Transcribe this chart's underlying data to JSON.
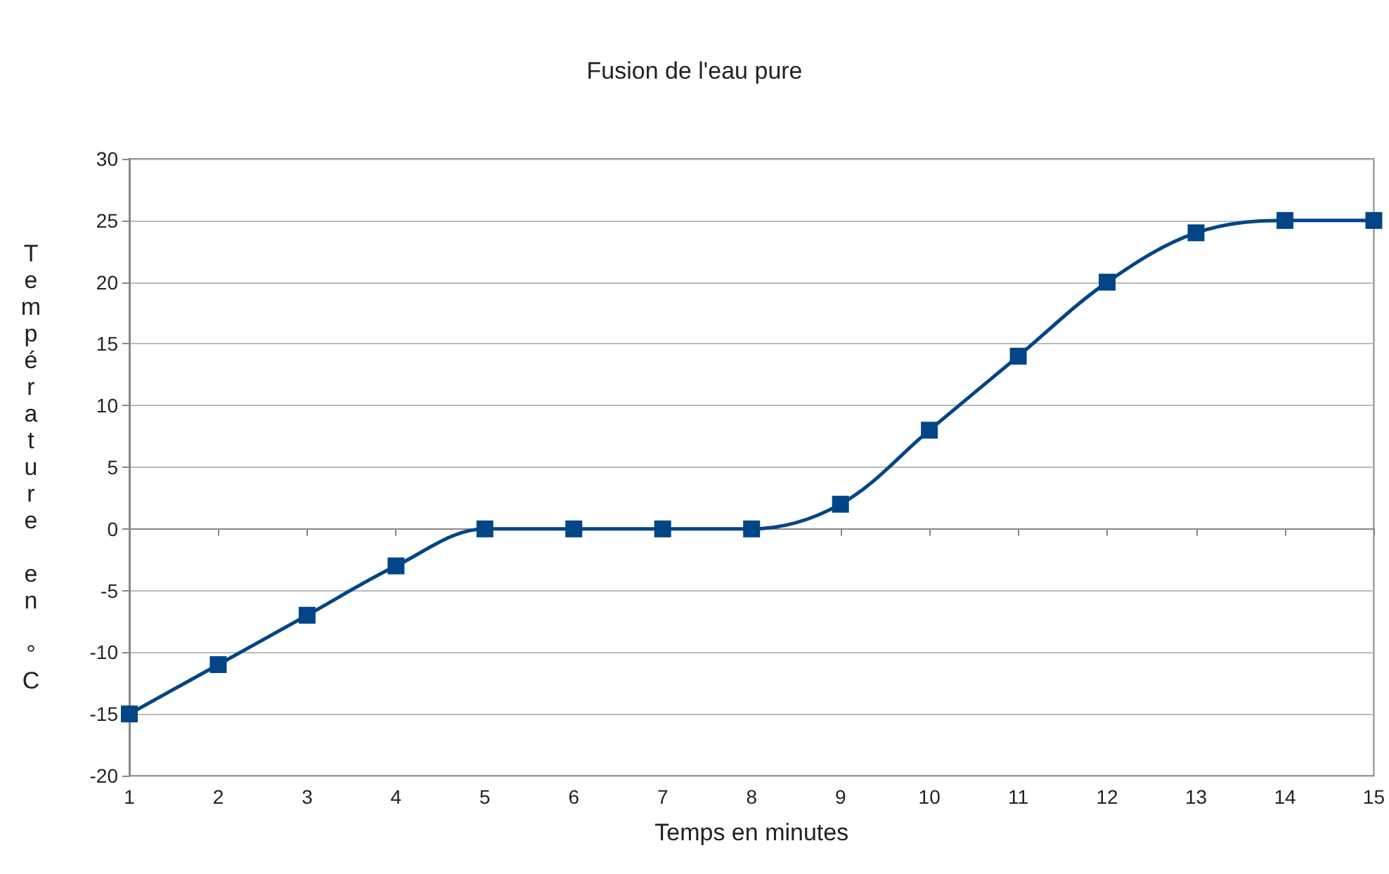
{
  "chart_data": {
    "type": "line",
    "title": "Fusion de l'eau pure",
    "xlabel": "Temps en minutes",
    "ylabel": "Température en °C",
    "x": [
      1,
      2,
      3,
      4,
      5,
      6,
      7,
      8,
      9,
      10,
      11,
      12,
      13,
      14,
      15
    ],
    "series": [
      {
        "color": "#004586",
        "values": [
          -15,
          -11,
          -7,
          -3,
          0,
          0,
          0,
          0,
          2,
          8,
          14,
          20,
          24,
          25,
          25
        ]
      }
    ],
    "xlim": [
      1,
      15
    ],
    "xticks": [
      1,
      2,
      3,
      4,
      5,
      6,
      7,
      8,
      9,
      10,
      11,
      12,
      13,
      14,
      15
    ],
    "ylim": [
      -20,
      30
    ],
    "yticks": [
      -20,
      -15,
      -10,
      -5,
      0,
      5,
      10,
      15,
      20,
      25,
      30
    ],
    "grid": "y",
    "marker": "square",
    "line_style": "solid"
  }
}
